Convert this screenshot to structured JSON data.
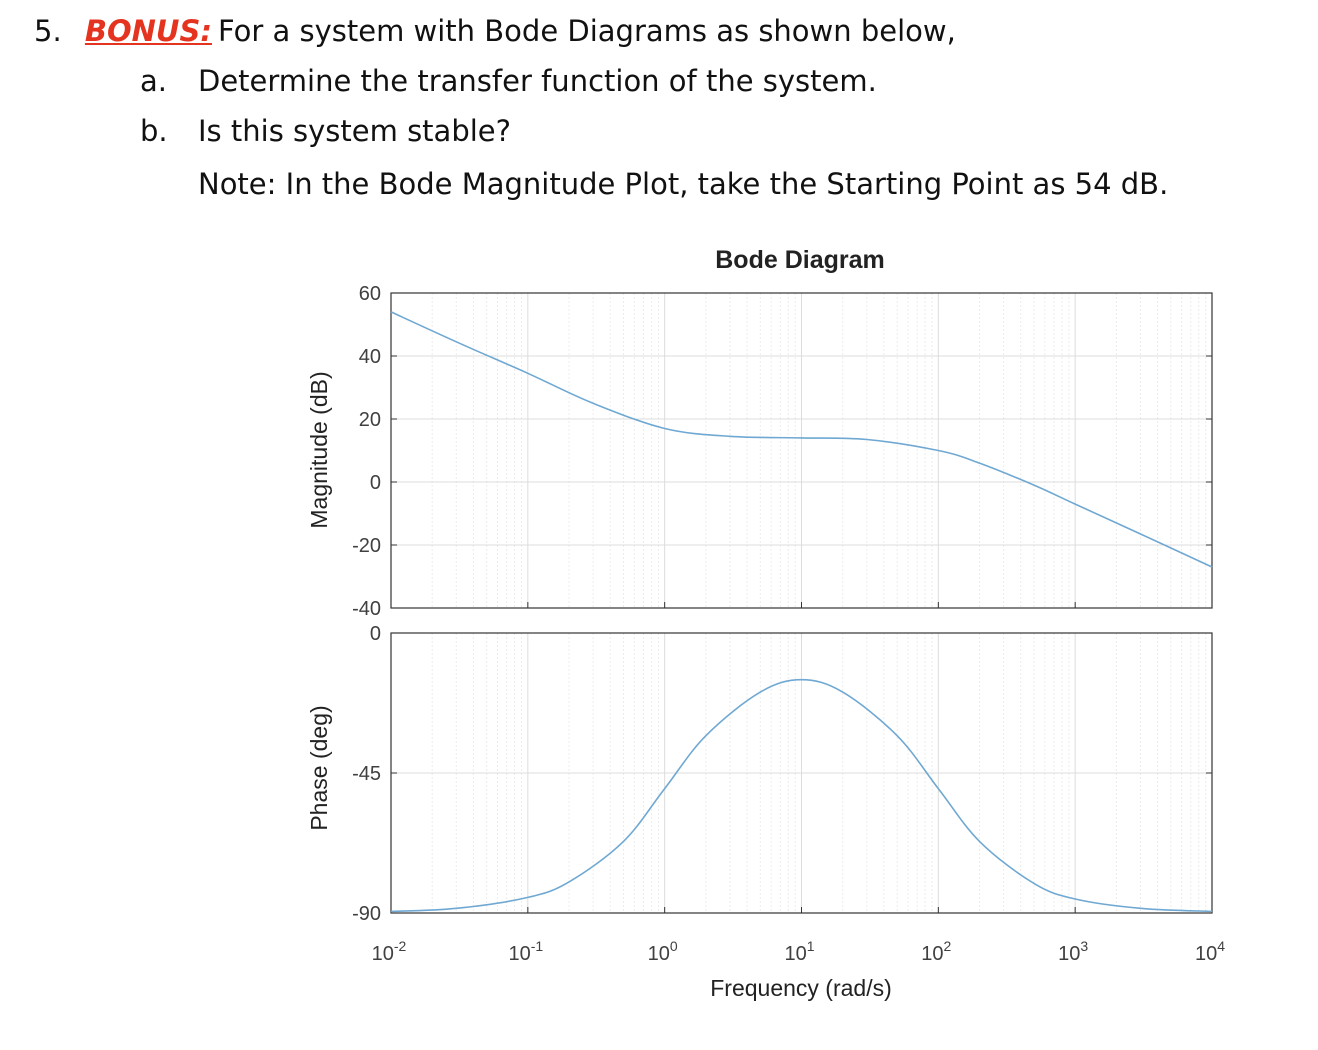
{
  "question": {
    "number": "5.",
    "bonus_label": "BONUS:",
    "stem": "For a system with Bode Diagrams as shown below,",
    "parts": [
      {
        "label": "a.",
        "text": "Determine the transfer function of the system."
      },
      {
        "label": "b.",
        "text": "Is this system stable?"
      }
    ],
    "note": "Note: In the Bode Magnitude Plot, take the Starting Point as 54 dB."
  },
  "chart_data": {
    "type": "line",
    "title": "Bode Diagram",
    "xlabel": "Frequency (rad/s)",
    "xscale": "log",
    "xlim": [
      0.01,
      10000
    ],
    "x_ticks": [
      {
        "base": "10",
        "exp": "-2",
        "value": 0.01
      },
      {
        "base": "10",
        "exp": "-1",
        "value": 0.1
      },
      {
        "base": "10",
        "exp": "0",
        "value": 1
      },
      {
        "base": "10",
        "exp": "1",
        "value": 10
      },
      {
        "base": "10",
        "exp": "2",
        "value": 100
      },
      {
        "base": "10",
        "exp": "3",
        "value": 1000
      },
      {
        "base": "10",
        "exp": "4",
        "value": 10000
      }
    ],
    "grid": true,
    "line_color": "#6fa8d2",
    "magnitude": {
      "ylabel": "Magnitude (dB)",
      "ylim": [
        -40,
        60
      ],
      "yticks": [
        "60",
        "40",
        "20",
        "0",
        "-20",
        "-40"
      ],
      "x": [
        0.01,
        0.03,
        0.1,
        0.3,
        1,
        3,
        10,
        30,
        100,
        200,
        500,
        1000,
        3000,
        10000
      ],
      "y": [
        54,
        44.5,
        34.5,
        25,
        17,
        14.5,
        14,
        13.5,
        10,
        6,
        -1,
        -7,
        -16.5,
        -27
      ]
    },
    "phase": {
      "ylabel": "Phase (deg)",
      "ylim": [
        -90,
        0
      ],
      "yticks": [
        "0",
        "-45",
        "-90"
      ],
      "x": [
        0.01,
        0.03,
        0.1,
        0.2,
        0.5,
        1,
        2,
        5,
        10,
        20,
        50,
        100,
        200,
        500,
        1000,
        3000,
        10000
      ],
      "y": [
        -89.5,
        -88.5,
        -85,
        -80,
        -67,
        -50,
        -33,
        -19,
        -15,
        -19,
        -33,
        -50,
        -67,
        -80.5,
        -85.5,
        -88.5,
        -89.5
      ]
    }
  }
}
